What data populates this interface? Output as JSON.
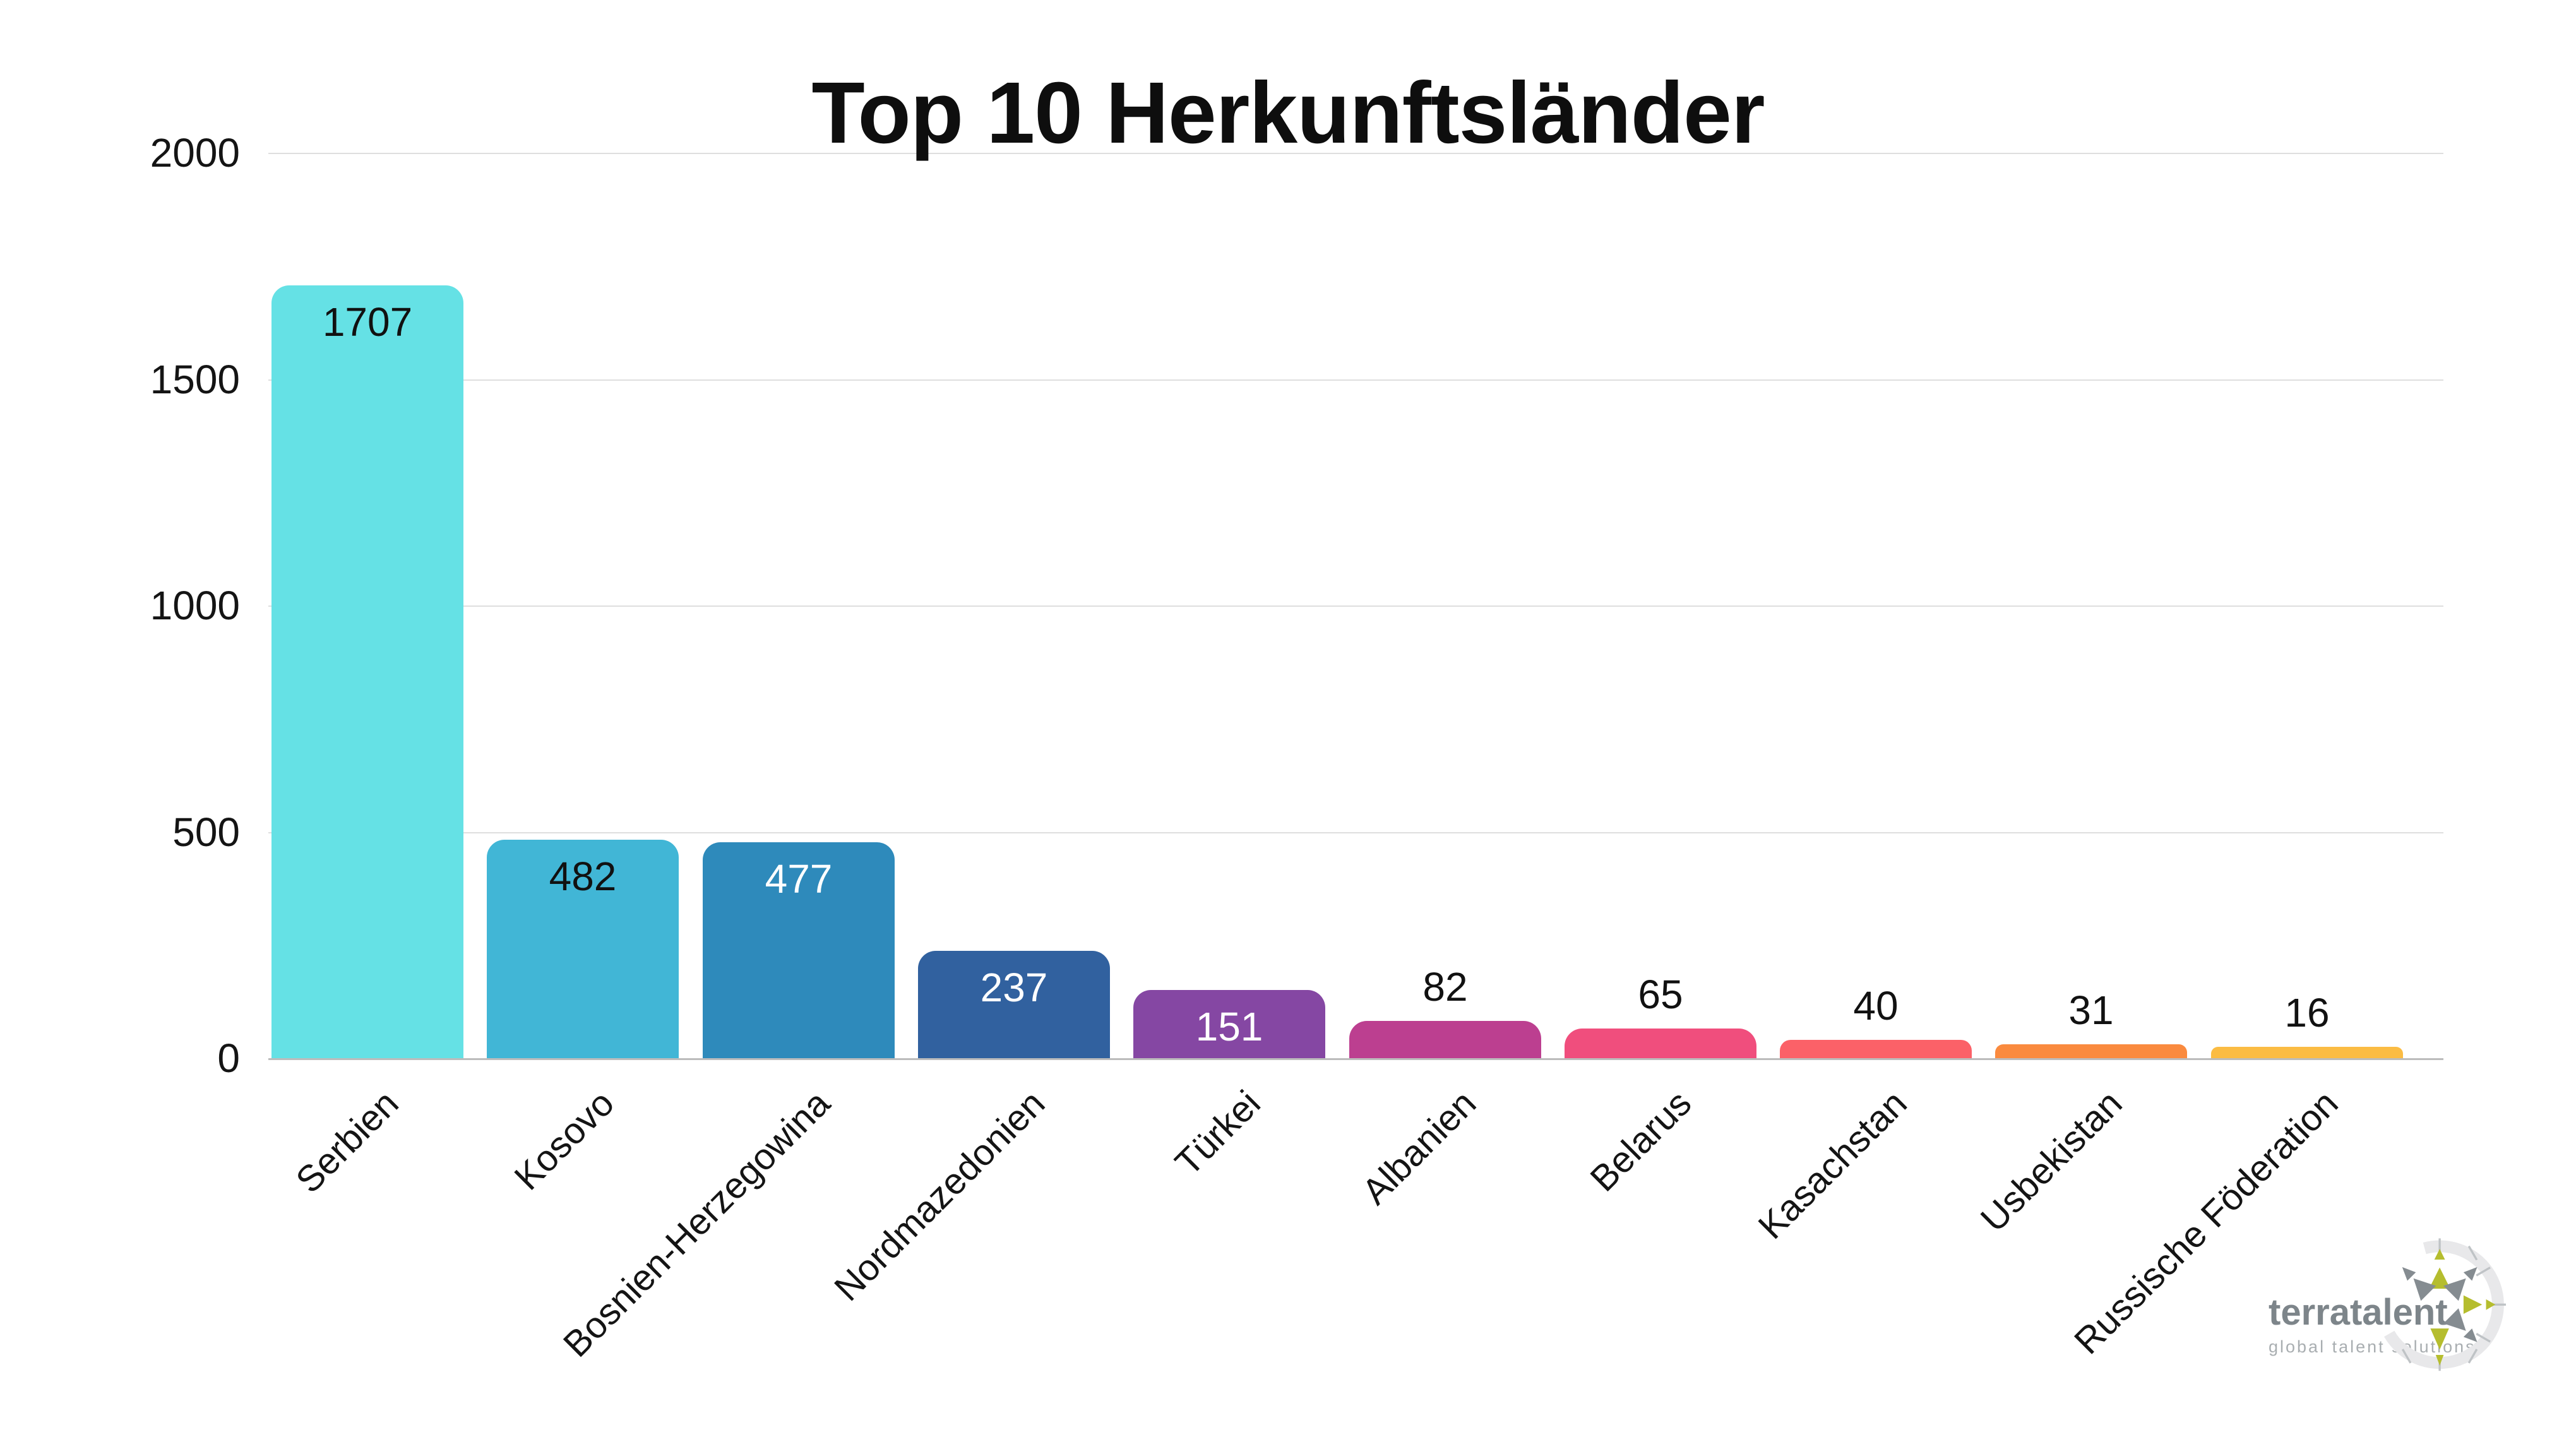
{
  "title": "Top 10 Herkunftsländer",
  "chart_data": {
    "type": "bar",
    "title": "Top 10 Herkunftsländer",
    "categories": [
      "Serbien",
      "Kosovo",
      "Bosnien-Herzegowina",
      "Nordmazedonien",
      "Türkei",
      "Albanien",
      "Belarus",
      "Kasachstan",
      "Usbekistan",
      "Russische Föderation"
    ],
    "values": [
      1707,
      482,
      477,
      237,
      151,
      82,
      65,
      40,
      31,
      16
    ],
    "bar_colors": [
      "#65E1E5",
      "#41B6D6",
      "#2E8ABB",
      "#31619F",
      "#8547A3",
      "#BC3F90",
      "#F04E7D",
      "#FB6168",
      "#FA8A3E",
      "#FBBC43"
    ],
    "value_label_position": [
      "inside",
      "inside",
      "inside",
      "inside",
      "inside",
      "above",
      "above",
      "above",
      "above",
      "above"
    ],
    "value_label_colors": [
      "#111111",
      "#111111",
      "#FFFFFF",
      "#FFFFFF",
      "#FFFFFF",
      "#111111",
      "#111111",
      "#111111",
      "#111111",
      "#111111"
    ],
    "xlabel": "",
    "ylabel": "",
    "ylim": [
      0,
      2000
    ],
    "yticks": [
      0,
      500,
      1000,
      1500,
      2000
    ],
    "grid": true,
    "legend": false,
    "x_tick_rotation_deg": 45
  },
  "logo": {
    "name": "terratalent",
    "tagline": "global talent solutions",
    "text_color": "#7d858a",
    "tagline_color": "#a9aeb1",
    "accent_green": "#b5bd2e",
    "accent_gray": "#858c91",
    "ring_color": "#e8e8ea"
  }
}
